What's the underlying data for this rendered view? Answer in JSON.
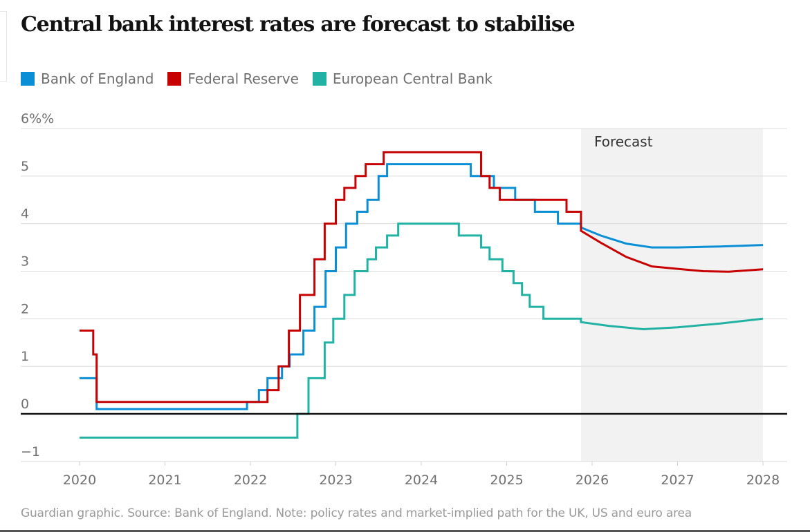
{
  "header": {
    "title": "Central bank interest rates are forecast to stabilise"
  },
  "legend": [
    {
      "label": "Bank of England",
      "color": "#0a8fd6"
    },
    {
      "label": "Federal Reserve",
      "color": "#c70000"
    },
    {
      "label": "European Central Bank",
      "color": "#22b2a3"
    }
  ],
  "footer": {
    "source": "Guardian graphic. Source: Bank of England. Note: policy rates and market-implied path for the UK, US and euro area"
  },
  "chart_data": {
    "type": "line",
    "title": "Central bank interest rates are forecast to stabilise",
    "xlabel": "",
    "ylabel": "%",
    "xlim": [
      2019.7,
      2028.3
    ],
    "ylim": [
      -1,
      6
    ],
    "x_ticks": [
      2020,
      2021,
      2022,
      2023,
      2024,
      2025,
      2026,
      2027,
      2028
    ],
    "y_ticks": [
      {
        "value": 6,
        "label": "6%%"
      },
      {
        "value": 5,
        "label": "5"
      },
      {
        "value": 4,
        "label": "4"
      },
      {
        "value": 3,
        "label": "3"
      },
      {
        "value": 2,
        "label": "2"
      },
      {
        "value": 1,
        "label": "1"
      },
      {
        "value": 0,
        "label": "0"
      },
      {
        "value": -1,
        "label": "−1"
      }
    ],
    "grid": true,
    "legend_position": "top-left",
    "forecast_region": {
      "label": "Forecast",
      "x_start": 2025.87,
      "x_end": 2028.0
    },
    "series": [
      {
        "name": "Bank of England",
        "color": "#0a8fd6",
        "steps": [
          [
            2020.0,
            0.75
          ],
          [
            2020.2,
            0.1
          ],
          [
            2021.96,
            0.25
          ],
          [
            2022.1,
            0.5
          ],
          [
            2022.2,
            0.75
          ],
          [
            2022.37,
            1.0
          ],
          [
            2022.46,
            1.25
          ],
          [
            2022.62,
            1.75
          ],
          [
            2022.75,
            2.25
          ],
          [
            2022.88,
            3.0
          ],
          [
            2023.0,
            3.5
          ],
          [
            2023.12,
            4.0
          ],
          [
            2023.25,
            4.25
          ],
          [
            2023.37,
            4.5
          ],
          [
            2023.5,
            5.0
          ],
          [
            2023.6,
            5.25
          ],
          [
            2024.58,
            5.0
          ],
          [
            2024.7,
            5.0
          ],
          [
            2024.85,
            4.75
          ],
          [
            2025.1,
            4.5
          ],
          [
            2025.33,
            4.25
          ],
          [
            2025.6,
            4.0
          ],
          [
            2025.87,
            4.0
          ]
        ],
        "step_end": 2025.87,
        "forecast": [
          [
            2025.87,
            3.92
          ],
          [
            2026.1,
            3.75
          ],
          [
            2026.4,
            3.58
          ],
          [
            2026.7,
            3.5
          ],
          [
            2027.0,
            3.5
          ],
          [
            2027.5,
            3.52
          ],
          [
            2028.0,
            3.55
          ]
        ]
      },
      {
        "name": "Federal Reserve",
        "color": "#c70000",
        "steps": [
          [
            2020.0,
            1.75
          ],
          [
            2020.16,
            1.25
          ],
          [
            2020.2,
            0.25
          ],
          [
            2022.2,
            0.5
          ],
          [
            2022.33,
            1.0
          ],
          [
            2022.45,
            1.75
          ],
          [
            2022.58,
            2.5
          ],
          [
            2022.75,
            3.25
          ],
          [
            2022.87,
            4.0
          ],
          [
            2023.0,
            4.5
          ],
          [
            2023.1,
            4.75
          ],
          [
            2023.23,
            5.0
          ],
          [
            2023.35,
            5.25
          ],
          [
            2023.56,
            5.5
          ],
          [
            2024.7,
            5.0
          ],
          [
            2024.8,
            4.75
          ],
          [
            2024.92,
            4.5
          ],
          [
            2025.7,
            4.25
          ],
          [
            2025.82,
            4.25
          ]
        ],
        "step_end": 2025.87,
        "forecast": [
          [
            2025.87,
            3.85
          ],
          [
            2026.1,
            3.6
          ],
          [
            2026.4,
            3.3
          ],
          [
            2026.7,
            3.1
          ],
          [
            2027.0,
            3.05
          ],
          [
            2027.3,
            3.0
          ],
          [
            2027.6,
            2.99
          ],
          [
            2028.0,
            3.04
          ]
        ]
      },
      {
        "name": "European Central Bank",
        "color": "#22b2a3",
        "steps": [
          [
            2020.0,
            -0.5
          ],
          [
            2022.55,
            0.0
          ],
          [
            2022.68,
            0.75
          ],
          [
            2022.87,
            1.5
          ],
          [
            2022.97,
            2.0
          ],
          [
            2023.1,
            2.5
          ],
          [
            2023.22,
            3.0
          ],
          [
            2023.37,
            3.25
          ],
          [
            2023.47,
            3.5
          ],
          [
            2023.6,
            3.75
          ],
          [
            2023.73,
            4.0
          ],
          [
            2024.44,
            3.75
          ],
          [
            2024.7,
            3.5
          ],
          [
            2024.8,
            3.25
          ],
          [
            2024.95,
            3.0
          ],
          [
            2025.08,
            2.75
          ],
          [
            2025.18,
            2.5
          ],
          [
            2025.27,
            2.25
          ],
          [
            2025.43,
            2.0
          ]
        ],
        "step_end": 2025.87,
        "forecast": [
          [
            2025.87,
            1.93
          ],
          [
            2026.2,
            1.85
          ],
          [
            2026.6,
            1.78
          ],
          [
            2027.0,
            1.82
          ],
          [
            2027.5,
            1.9
          ],
          [
            2028.0,
            2.0
          ]
        ]
      }
    ]
  }
}
